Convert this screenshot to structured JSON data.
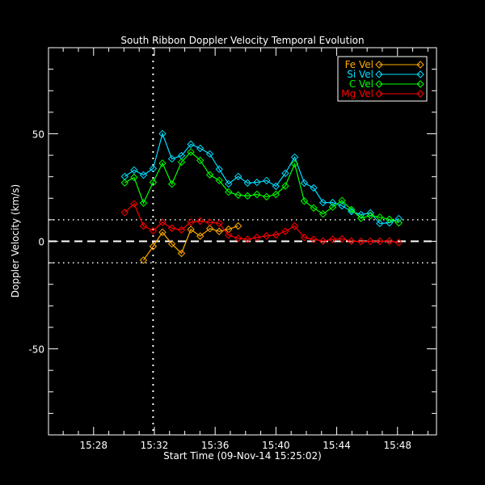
{
  "chart_data": {
    "type": "line",
    "title": "South Ribbon Doppler Velocity Temporal Evolution",
    "xlabel": "Start Time (09-Nov-14 15:25:02)",
    "ylabel": "Doppler Velocity (km/s)",
    "xlim": [
      "15:25:02",
      "15:50:34"
    ],
    "ylim": [
      -90,
      90
    ],
    "x_ticks": [
      "15:28",
      "15:32",
      "15:36",
      "15:40",
      "15:44",
      "15:48"
    ],
    "y_ticks": [
      -50,
      0,
      50
    ],
    "grid": false,
    "legend_position": "top-right",
    "reference_lines": {
      "horizontal_dashed": 0,
      "horizontal_dotted": [
        10,
        -10
      ],
      "vertical_dotted": "15:31:55"
    },
    "x": [
      "15:30:03",
      "15:30:40",
      "15:31:17",
      "15:31:55",
      "15:32:32",
      "15:33:09",
      "15:33:47",
      "15:34:24",
      "15:35:01",
      "15:35:39",
      "15:36:16",
      "15:36:53",
      "15:37:31",
      "15:38:08",
      "15:38:45",
      "15:39:23",
      "15:40:00",
      "15:40:37",
      "15:41:14",
      "15:41:52",
      "15:42:29",
      "15:43:06",
      "15:43:44",
      "15:44:21",
      "15:44:58",
      "15:45:36",
      "15:46:13",
      "15:46:50",
      "15:47:28",
      "15:48:05"
    ],
    "series": [
      {
        "name": "Fe Vel",
        "color": "#ffaa00",
        "values": [
          null,
          null,
          -8.8,
          -2.4,
          4.2,
          -1.2,
          -5.6,
          5.5,
          2.4,
          5.9,
          4.6,
          5.6,
          7.1,
          null,
          null,
          null,
          null,
          null,
          null,
          null,
          null,
          null,
          null,
          null,
          null,
          null,
          null,
          null,
          null,
          null
        ]
      },
      {
        "name": "Si Vel",
        "color": "#00ddff",
        "values": [
          30.1,
          33.1,
          30.8,
          33.8,
          50.0,
          38.3,
          39.8,
          45.1,
          43.2,
          40.6,
          33.5,
          26.7,
          30.1,
          27.1,
          27.4,
          28.2,
          25.6,
          31.6,
          39.1,
          27.1,
          24.8,
          18.0,
          18.0,
          16.5,
          13.9,
          12.4,
          13.2,
          8.3,
          8.6,
          10.5
        ]
      },
      {
        "name": "C Vel",
        "color": "#00ff00",
        "values": [
          27.2,
          29.7,
          17.8,
          27.4,
          36.3,
          26.6,
          36.8,
          41.5,
          37.6,
          30.9,
          28.3,
          22.9,
          21.5,
          21.1,
          21.8,
          20.7,
          21.8,
          25.7,
          36.0,
          18.7,
          15.5,
          12.7,
          15.9,
          18.9,
          14.7,
          10.7,
          12.0,
          11.2,
          10.2,
          8.6
        ]
      },
      {
        "name": "Mg Vel",
        "color": "#ff0000",
        "values": [
          13.4,
          17.4,
          7.1,
          4.9,
          8.8,
          6.1,
          5.3,
          8.9,
          9.4,
          8.8,
          8.4,
          2.9,
          1.4,
          0.9,
          1.8,
          2.5,
          3.0,
          4.6,
          7.1,
          1.8,
          0.9,
          0.1,
          0.9,
          1.1,
          0.1,
          -0.1,
          0.0,
          0.0,
          0.1,
          -0.6
        ]
      }
    ]
  }
}
